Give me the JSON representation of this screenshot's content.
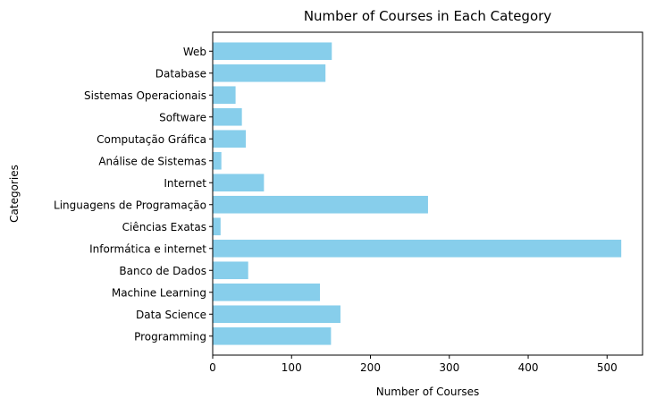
{
  "chart_data": {
    "type": "bar",
    "orientation": "horizontal",
    "title": "Number of Courses in Each Category",
    "xlabel": "Number of Courses",
    "ylabel": "Categories",
    "categories": [
      "Programming",
      "Data Science",
      "Machine Learning",
      "Banco de Dados",
      "Informática e internet",
      "Ciências Exatas",
      "Linguagens de Programação",
      "Internet",
      "Análise de Sistemas",
      "Computação Gráfica",
      "Software",
      "Sistemas Operacionais",
      "Database",
      "Web"
    ],
    "values": [
      150,
      162,
      136,
      45,
      518,
      10,
      273,
      65,
      11,
      42,
      37,
      29,
      143,
      151
    ],
    "xlim": [
      0,
      545
    ],
    "xticks": [
      0,
      100,
      200,
      300,
      400,
      500
    ],
    "bar_color": "#87CEEB",
    "grid": false,
    "legend": "none"
  }
}
